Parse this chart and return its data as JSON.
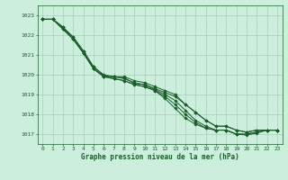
{
  "background_color": "#cceedd",
  "plot_bg_color": "#cceedd",
  "line_color": "#1a5c2a",
  "grid_color": "#aaccbb",
  "tick_color": "#1a5c2a",
  "label_color": "#1a5c2a",
  "xlabel": "Graphe pression niveau de la mer (hPa)",
  "ylim": [
    1016.5,
    1023.5
  ],
  "xlim": [
    -0.5,
    23.5
  ],
  "yticks": [
    1017,
    1018,
    1019,
    1020,
    1021,
    1022,
    1023
  ],
  "xticks": [
    0,
    1,
    2,
    3,
    4,
    5,
    6,
    7,
    8,
    9,
    10,
    11,
    12,
    13,
    14,
    15,
    16,
    17,
    18,
    19,
    20,
    21,
    22,
    23
  ],
  "series": [
    [
      1022.8,
      1022.8,
      1022.4,
      1021.8,
      1021.1,
      1020.3,
      1019.9,
      1019.9,
      1019.8,
      1019.6,
      1019.5,
      1019.3,
      1019.1,
      1018.9,
      1018.5,
      1018.1,
      1017.7,
      1017.4,
      1017.4,
      1017.2,
      1017.1,
      1017.2,
      1017.2,
      1017.2
    ],
    [
      1022.8,
      1022.8,
      1022.4,
      1021.9,
      1021.2,
      1020.4,
      1020.0,
      1019.9,
      1019.9,
      1019.7,
      1019.6,
      1019.4,
      1019.2,
      1019.0,
      1018.5,
      1018.1,
      1017.7,
      1017.4,
      1017.4,
      1017.2,
      1017.1,
      1017.2,
      1017.2,
      1017.2
    ],
    [
      1022.8,
      1022.8,
      1022.4,
      1021.9,
      1021.2,
      1020.4,
      1019.95,
      1019.9,
      1019.85,
      1019.55,
      1019.5,
      1019.25,
      1019.0,
      1018.7,
      1018.2,
      1017.7,
      1017.4,
      1017.2,
      1017.2,
      1017.0,
      1017.0,
      1017.1,
      1017.2,
      1017.2
    ],
    [
      1022.8,
      1022.8,
      1022.3,
      1021.8,
      1021.1,
      1020.3,
      1019.9,
      1019.8,
      1019.7,
      1019.5,
      1019.4,
      1019.2,
      1018.9,
      1018.5,
      1018.0,
      1017.6,
      1017.3,
      1017.2,
      1017.2,
      1017.0,
      1017.0,
      1017.1,
      1017.2,
      1017.2
    ],
    [
      1022.8,
      1022.8,
      1022.3,
      1021.8,
      1021.1,
      1020.3,
      1019.9,
      1019.8,
      1019.7,
      1019.5,
      1019.4,
      1019.2,
      1018.8,
      1018.3,
      1017.8,
      1017.5,
      1017.3,
      1017.2,
      1017.2,
      1017.0,
      1016.95,
      1017.05,
      1017.2,
      1017.2
    ]
  ]
}
